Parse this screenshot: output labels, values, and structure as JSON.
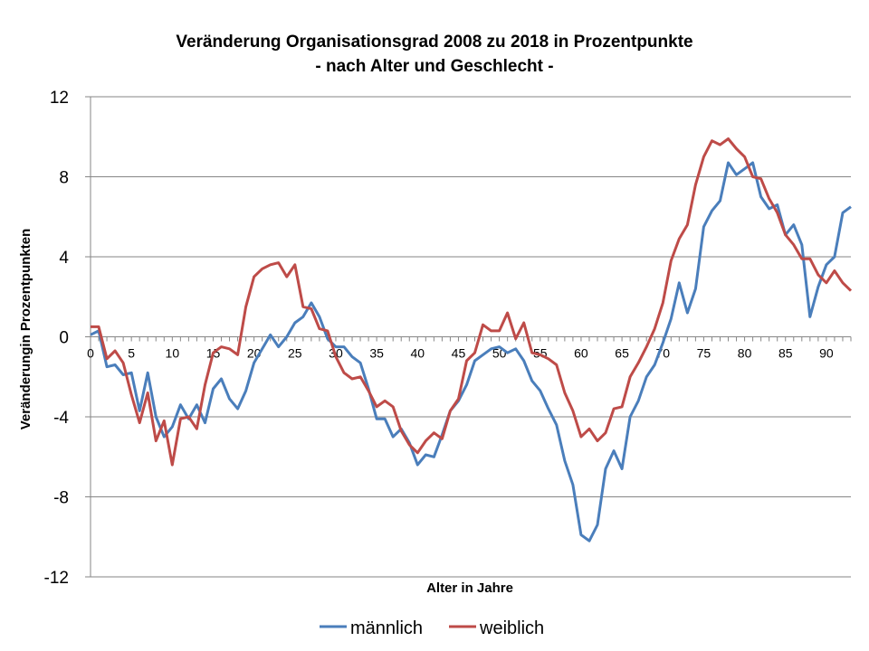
{
  "chart_data": {
    "type": "line",
    "title_line1": "Veränderung Organisationsgrad 2008 zu 2018 in Prozentpunkte",
    "title_line2": "- nach Alter und Geschlecht -",
    "xlabel": "Alter in Jahre",
    "ylabel": "Veränderungin Prozentpunkten",
    "xlim": [
      0,
      93
    ],
    "ylim": [
      -12,
      12
    ],
    "yticks": [
      -12,
      -8,
      -4,
      0,
      4,
      8,
      12
    ],
    "xticks": [
      0,
      5,
      10,
      15,
      20,
      25,
      30,
      35,
      40,
      45,
      50,
      55,
      60,
      65,
      70,
      75,
      80,
      85,
      90
    ],
    "grid": "horizontal",
    "legend_position": "bottom",
    "series": [
      {
        "name": "männlich",
        "color": "#4a7ebb",
        "values": [
          0.1,
          0.3,
          -1.5,
          -1.4,
          -1.9,
          -1.8,
          -3.7,
          -1.8,
          -4.0,
          -5.0,
          -4.5,
          -3.4,
          -4.1,
          -3.4,
          -4.3,
          -2.6,
          -2.1,
          -3.1,
          -3.6,
          -2.7,
          -1.3,
          -0.6,
          0.1,
          -0.5,
          0.0,
          0.7,
          1.0,
          1.7,
          1.0,
          -0.1,
          -0.5,
          -0.5,
          -1.0,
          -1.3,
          -2.6,
          -4.1,
          -4.1,
          -5.0,
          -4.6,
          -5.3,
          -6.4,
          -5.9,
          -6.0,
          -4.9,
          -3.7,
          -3.2,
          -2.4,
          -1.2,
          -0.9,
          -0.6,
          -0.5,
          -0.8,
          -0.6,
          -1.2,
          -2.2,
          -2.7,
          -3.6,
          -4.4,
          -6.2,
          -7.4,
          -9.9,
          -10.2,
          -9.4,
          -6.6,
          -5.7,
          -6.6,
          -4.0,
          -3.2,
          -2.0,
          -1.4,
          -0.3,
          0.9,
          2.7,
          1.2,
          2.4,
          5.5,
          6.3,
          6.8,
          8.7,
          8.1,
          8.4,
          8.7,
          7.0,
          6.4,
          6.6,
          5.1,
          5.6,
          4.6,
          1.0,
          2.5,
          3.6,
          4.0,
          6.2,
          6.5
        ]
      },
      {
        "name": "weiblich",
        "color": "#be4b48",
        "values": [
          0.5,
          0.5,
          -1.1,
          -0.7,
          -1.3,
          -2.9,
          -4.3,
          -2.8,
          -5.2,
          -4.2,
          -6.4,
          -4.1,
          -4.0,
          -4.6,
          -2.4,
          -0.8,
          -0.5,
          -0.6,
          -0.9,
          1.5,
          3.0,
          3.4,
          3.6,
          3.7,
          3.0,
          3.6,
          1.5,
          1.4,
          0.4,
          0.3,
          -1.0,
          -1.8,
          -2.1,
          -2.0,
          -2.7,
          -3.5,
          -3.2,
          -3.5,
          -4.7,
          -5.4,
          -5.8,
          -5.2,
          -4.8,
          -5.1,
          -3.7,
          -3.1,
          -1.2,
          -0.8,
          0.6,
          0.3,
          0.3,
          1.2,
          -0.1,
          0.7,
          -0.8,
          -0.9,
          -1.1,
          -1.4,
          -2.8,
          -3.7,
          -5.0,
          -4.6,
          -5.2,
          -4.8,
          -3.6,
          -3.5,
          -2.0,
          -1.3,
          -0.5,
          0.4,
          1.7,
          3.8,
          4.9,
          5.6,
          7.6,
          9.0,
          9.8,
          9.6,
          9.9,
          9.4,
          9.0,
          8.0,
          7.9,
          6.9,
          6.2,
          5.1,
          4.6,
          3.9,
          3.9,
          3.1,
          2.7,
          3.3,
          2.7,
          2.3
        ]
      }
    ]
  }
}
